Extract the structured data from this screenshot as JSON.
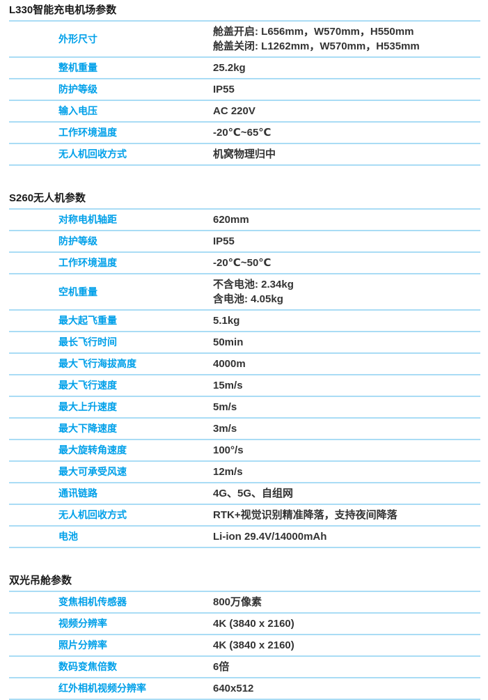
{
  "theme": {
    "accent": "#00a0e9",
    "divider": "#a9dcf5",
    "value_text": "#333333",
    "heading_text": "#1a1a1a",
    "background": "#ffffff"
  },
  "sections": [
    {
      "title": "L330智能充电机场参数",
      "rows": [
        {
          "label": "外形尺寸",
          "values": [
            "舱盖开启: L656mm，W570mm，H550mm",
            "舱盖关闭: L1262mm，W570mm，H535mm"
          ]
        },
        {
          "label": "整机重量",
          "values": [
            "25.2kg"
          ]
        },
        {
          "label": "防护等级",
          "values": [
            "IP55"
          ]
        },
        {
          "label": "输入电压",
          "values": [
            "AC 220V"
          ]
        },
        {
          "label": "工作环境温度",
          "values": [
            "-20℃~65℃"
          ]
        },
        {
          "label": "无人机回收方式",
          "values": [
            "机窝物理归中"
          ]
        }
      ]
    },
    {
      "title": "S260无人机参数",
      "rows": [
        {
          "label": "对称电机轴距",
          "values": [
            "620mm"
          ]
        },
        {
          "label": "防护等级",
          "values": [
            "IP55"
          ]
        },
        {
          "label": "工作环境温度",
          "values": [
            "-20℃~50℃"
          ]
        },
        {
          "label": "空机重量",
          "values": [
            "不含电池: 2.34kg",
            "含电池: 4.05kg"
          ]
        },
        {
          "label": "最大起飞重量",
          "values": [
            "5.1kg"
          ]
        },
        {
          "label": "最长飞行时间",
          "values": [
            "50min"
          ]
        },
        {
          "label": "最大飞行海拔高度",
          "values": [
            "4000m"
          ]
        },
        {
          "label": "最大飞行速度",
          "values": [
            "15m/s"
          ]
        },
        {
          "label": "最大上升速度",
          "values": [
            "5m/s"
          ]
        },
        {
          "label": "最大下降速度",
          "values": [
            "3m/s"
          ]
        },
        {
          "label": "最大旋转角速度",
          "values": [
            "100°/s"
          ]
        },
        {
          "label": "最大可承受风速",
          "values": [
            "12m/s"
          ]
        },
        {
          "label": "通讯链路",
          "values": [
            "4G、5G、自组网"
          ]
        },
        {
          "label": "无人机回收方式",
          "values": [
            "RTK+视觉识别精准降落，支持夜间降落"
          ]
        },
        {
          "label": "电池",
          "values": [
            "Li-ion 29.4V/14000mAh"
          ]
        }
      ]
    },
    {
      "title": "双光吊舱参数",
      "rows": [
        {
          "label": "变焦相机传感器",
          "values": [
            "800万像素"
          ]
        },
        {
          "label": "视频分辨率",
          "values": [
            "4K (3840 x 2160)"
          ]
        },
        {
          "label": "照片分辨率",
          "values": [
            "4K (3840 x 2160)"
          ]
        },
        {
          "label": "数码变焦倍数",
          "values": [
            "6倍"
          ]
        },
        {
          "label": "红外相机视频分辨率",
          "values": [
            "640x512"
          ]
        }
      ]
    }
  ]
}
